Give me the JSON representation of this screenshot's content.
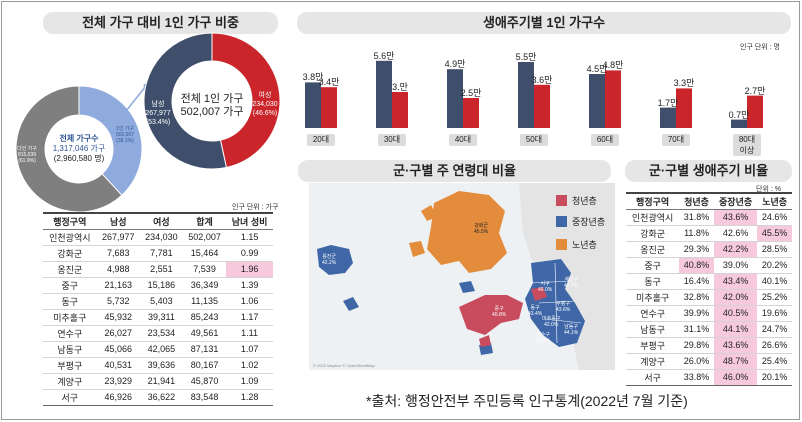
{
  "titles": {
    "left": "전체 가구 대비 1인 가구 비중",
    "bar": "생애주기별 1인 가구수",
    "map": "군·구별 주 연령대 비율",
    "lifecycle": "군·구별 생애주기 비율"
  },
  "colors": {
    "female": "#c9252b",
    "male": "#3f4f6b",
    "one_person": "#8faadc",
    "multi": "#7f7f7f",
    "youth": "#c84b5e",
    "middle": "#3f67a8",
    "elder": "#e38d3c",
    "pink": "#f6c9dc"
  },
  "small_donut": {
    "slices": [
      {
        "label": "다인 가구",
        "value_text": "815,039",
        "pct": 61.9,
        "pct_text": "(61.9%)"
      },
      {
        "label": "1인 가구",
        "value_text": "502,007",
        "pct": 38.1,
        "pct_text": "(38.1%)"
      }
    ],
    "center_label": "전체 가구수",
    "center_value": "1,317,046 가구",
    "center_people": "(2,960,580 명)"
  },
  "big_donut": {
    "center_title": "전체 1인 가구",
    "center_value": "502,007 가구",
    "male": {
      "label": "남성",
      "value": "267,977",
      "pct_text": "(53.4%)",
      "pct": 53.4
    },
    "female": {
      "label": "여성",
      "value": "234,030",
      "pct_text": "(46.6%)",
      "pct": 46.6
    }
  },
  "table1": {
    "unit": "인구 단위 : 가구",
    "headers": [
      "행정구역",
      "남성",
      "여성",
      "합계",
      "남녀 성비"
    ],
    "rows": [
      [
        "인천광역시",
        "267,977",
        "234,030",
        "502,007",
        "1.15"
      ],
      [
        "강화군",
        "7,683",
        "7,781",
        "15,464",
        "0.99"
      ],
      [
        "옹진군",
        "4,988",
        "2,551",
        "7,539",
        "1.96"
      ],
      [
        "중구",
        "21,163",
        "15,186",
        "36,349",
        "1.39"
      ],
      [
        "동구",
        "5,732",
        "5,403",
        "11,135",
        "1.06"
      ],
      [
        "미추홀구",
        "45,932",
        "39,311",
        "85,243",
        "1.17"
      ],
      [
        "연수구",
        "26,027",
        "23,534",
        "49,561",
        "1.11"
      ],
      [
        "남동구",
        "45,066",
        "42,065",
        "87,131",
        "1.07"
      ],
      [
        "부평구",
        "40,531",
        "39,636",
        "80,167",
        "1.02"
      ],
      [
        "계양구",
        "23,929",
        "21,941",
        "45,870",
        "1.09"
      ],
      [
        "서구",
        "46,926",
        "36,622",
        "83,548",
        "1.28"
      ]
    ],
    "highlight": [
      [
        2,
        4
      ]
    ]
  },
  "chart_data": {
    "type": "bar",
    "title": "생애주기별 1인 가구수",
    "unit_label": "인구 단위 : 명",
    "categories": [
      "20대",
      "30대",
      "40대",
      "50대",
      "60대",
      "70대",
      "80대\n이상"
    ],
    "series": [
      {
        "values": [
          3.8,
          5.6,
          4.9,
          5.5,
          4.5,
          1.7,
          0.7
        ],
        "labels": [
          "3.8만",
          "5.6만",
          "4.9만",
          "5.5만",
          "4.5만",
          "1.7만",
          "0.7만"
        ]
      },
      {
        "values": [
          3.4,
          3.0,
          2.5,
          3.6,
          4.8,
          3.3,
          2.7
        ],
        "labels": [
          "3.4만",
          "3.만",
          "2.5만",
          "3.6만",
          "4.8만",
          "3.3만",
          "2.7만"
        ]
      }
    ],
    "ylim": [
      0,
      6
    ]
  },
  "map": {
    "legend": [
      "청년층",
      "중장년층",
      "노년층"
    ],
    "labels": [
      {
        "name": "강화군",
        "pct": "45.5%"
      },
      {
        "name": "옹진군",
        "pct": "42.2%"
      },
      {
        "name": "서구",
        "pct": "46.0%"
      },
      {
        "name": "계양구",
        "pct": "48.7%"
      },
      {
        "name": "부평구",
        "pct": "43.6%"
      },
      {
        "name": "동구",
        "pct": "43.4%"
      },
      {
        "name": "중구",
        "pct": "40.8%"
      },
      {
        "name": "미추홀구",
        "pct": "42.0%"
      },
      {
        "name": "연수구",
        "pct": "40.5%"
      },
      {
        "name": "남동구",
        "pct": "44.1%"
      }
    ],
    "credit": "© 2022 Mapbox © OpenStreetMap"
  },
  "table2": {
    "unit": "단위 : %",
    "headers": [
      "행정구역",
      "청년층",
      "중장년층",
      "노년층"
    ],
    "rows": [
      [
        "인천광역시",
        "31.8%",
        "43.6%",
        "24.6%"
      ],
      [
        "강화군",
        "11.8%",
        "42.6%",
        "45.5%"
      ],
      [
        "옹진군",
        "29.3%",
        "42.2%",
        "28.5%"
      ],
      [
        "중구",
        "40.8%",
        "39.0%",
        "20.2%"
      ],
      [
        "동구",
        "16.4%",
        "43.4%",
        "40.1%"
      ],
      [
        "미추홀구",
        "32.8%",
        "42.0%",
        "25.2%"
      ],
      [
        "연수구",
        "39.9%",
        "40.5%",
        "19.6%"
      ],
      [
        "남동구",
        "31.1%",
        "44.1%",
        "24.7%"
      ],
      [
        "부평구",
        "29.8%",
        "43.6%",
        "26.6%"
      ],
      [
        "계양구",
        "26.0%",
        "48.7%",
        "25.4%"
      ],
      [
        "서구",
        "33.8%",
        "46.0%",
        "20.1%"
      ]
    ],
    "highlight": [
      [
        0,
        2
      ],
      [
        1,
        3
      ],
      [
        2,
        2
      ],
      [
        3,
        1
      ],
      [
        4,
        2
      ],
      [
        5,
        2
      ],
      [
        6,
        2
      ],
      [
        7,
        2
      ],
      [
        8,
        2
      ],
      [
        9,
        2
      ],
      [
        10,
        2
      ]
    ]
  },
  "source": "*출처:  행정안전부  주민등록  인구통계(2022년  7월  기준)"
}
